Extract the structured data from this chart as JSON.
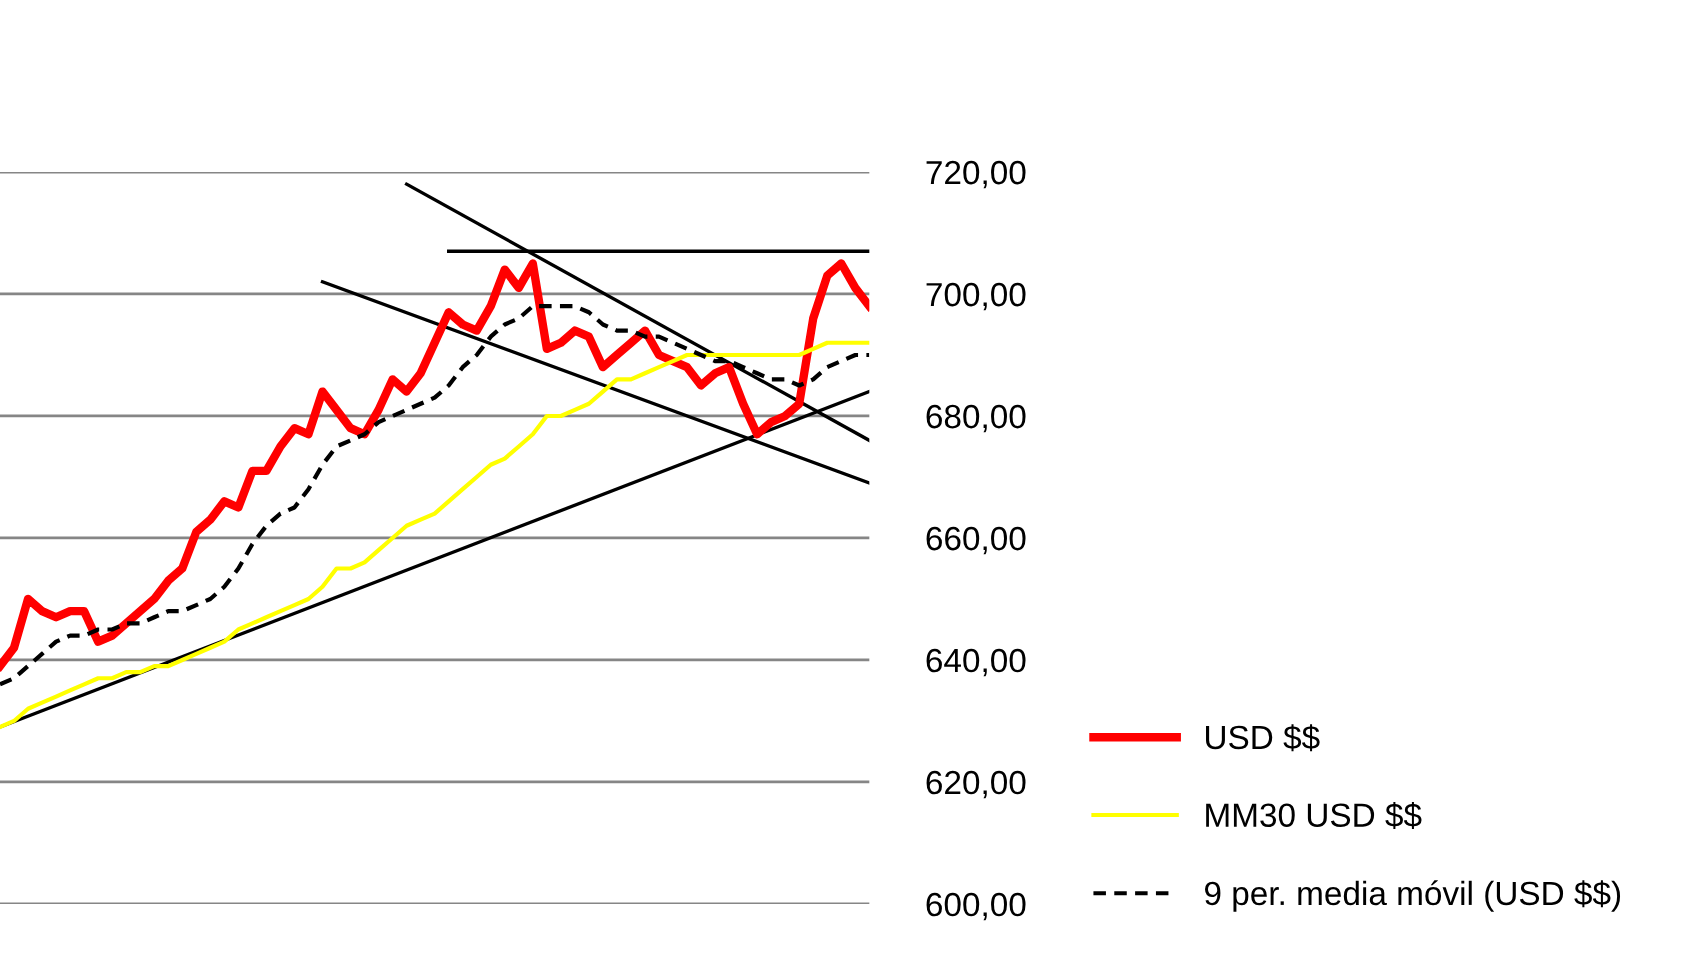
{
  "chart_data": {
    "type": "line",
    "ylim": [
      600,
      720
    ],
    "categories": [
      null,
      null,
      null,
      null,
      null,
      null,
      null,
      null,
      null,
      null,
      null,
      null,
      null,
      null,
      null,
      null,
      null,
      null,
      null,
      null,
      null,
      null,
      null,
      null,
      null,
      null,
      null,
      null,
      null,
      null,
      null,
      null,
      null,
      null,
      null,
      null,
      null,
      null,
      null,
      null,
      null,
      null,
      null,
      null,
      null,
      null,
      null,
      null,
      null,
      null,
      null,
      null,
      null,
      null,
      null,
      null,
      null,
      null,
      null,
      null,
      null,
      null,
      null
    ],
    "yticks": [
      {
        "value": 600,
        "label": "600,00"
      },
      {
        "value": 620,
        "label": "620,00"
      },
      {
        "value": 640,
        "label": "640,00"
      },
      {
        "value": 660,
        "label": "660,00"
      },
      {
        "value": 680,
        "label": "680,00"
      },
      {
        "value": 700,
        "label": "700,00"
      },
      {
        "value": 720,
        "label": "720,00"
      }
    ],
    "tick_labels": "y",
    "grid": "y",
    "legend": "right",
    "series": [
      {
        "name": "USD $$",
        "color": "#ff0000",
        "line_style": "solid",
        "values": [
          639,
          642,
          650,
          648,
          647,
          648,
          648,
          643,
          644,
          646,
          648,
          650,
          653,
          655,
          661,
          663,
          666,
          665,
          671,
          671,
          675,
          678,
          677,
          684,
          681,
          678,
          677,
          681,
          686,
          684,
          687,
          692,
          697,
          695,
          694,
          698,
          704,
          701,
          705,
          691,
          692,
          694,
          693,
          688,
          690,
          692,
          694,
          690,
          689,
          688,
          685,
          687,
          688,
          682,
          677,
          679,
          680,
          682,
          696,
          703,
          705,
          701,
          698
        ]
      },
      {
        "name": "MM30 USD $$",
        "color": "#ffff00",
        "line_style": "solid",
        "values": [
          629,
          630,
          632,
          633,
          634,
          635,
          636,
          637,
          637,
          638,
          638,
          639,
          639,
          640,
          641,
          642,
          643,
          645,
          646,
          647,
          648,
          649,
          650,
          652,
          655,
          655,
          656,
          658,
          660,
          662,
          663,
          664,
          666,
          668,
          670,
          672,
          673,
          675,
          677,
          680,
          680,
          681,
          682,
          684,
          686,
          686,
          687,
          688,
          689,
          690,
          690,
          690,
          690,
          690,
          690,
          690,
          690,
          690,
          691,
          692,
          692,
          692,
          692
        ]
      },
      {
        "name": "9 per. media móvil (USD $$)",
        "color": "#000000",
        "line_style": "dashed",
        "values": [
          636,
          637,
          639,
          641,
          643,
          644,
          644,
          645,
          645,
          646,
          646,
          647,
          648,
          648,
          649,
          650,
          652,
          655,
          659,
          662,
          664,
          665,
          668,
          672,
          675,
          676,
          677,
          679,
          680,
          681,
          682,
          683,
          685,
          688,
          690,
          693,
          695,
          696,
          698,
          698,
          698,
          698,
          697,
          695,
          694,
          694,
          693,
          693,
          692,
          691,
          690,
          689,
          689,
          688,
          687,
          686,
          686,
          685,
          686,
          688,
          689,
          690,
          690
        ]
      },
      {
        "color": "#000000",
        "line_style": "solid",
        "values": [
          629,
          null,
          null,
          null,
          null,
          null,
          null,
          null,
          null,
          null,
          null,
          null,
          null,
          null,
          null,
          null,
          null,
          null,
          null,
          null,
          null,
          null,
          null,
          null,
          null,
          null,
          null,
          null,
          null,
          null,
          null,
          null,
          null,
          null,
          null,
          null,
          null,
          null,
          null,
          null,
          null,
          null,
          null,
          null,
          null,
          null,
          null,
          null,
          null,
          null,
          null,
          null,
          null,
          null,
          null,
          null,
          null,
          null,
          null,
          null,
          null,
          null,
          684
        ]
      },
      {
        "color": "#000000",
        "line_style": "solid",
        "values": [
          null,
          null,
          null,
          null,
          null,
          null,
          null,
          null,
          null,
          null,
          null,
          null,
          null,
          null,
          null,
          null,
          null,
          null,
          null,
          null,
          null,
          null,
          null,
          null,
          null,
          null,
          null,
          null,
          null,
          718,
          null,
          null,
          null,
          null,
          null,
          null,
          null,
          null,
          null,
          null,
          null,
          null,
          null,
          null,
          null,
          null,
          null,
          null,
          null,
          null,
          null,
          null,
          null,
          null,
          null,
          null,
          null,
          null,
          null,
          null,
          null,
          null,
          676
        ]
      },
      {
        "color": "#000000",
        "line_style": "solid",
        "values": [
          null,
          null,
          null,
          null,
          null,
          null,
          null,
          null,
          null,
          null,
          null,
          null,
          null,
          null,
          null,
          null,
          null,
          null,
          null,
          null,
          null,
          null,
          null,
          702,
          null,
          null,
          null,
          null,
          null,
          null,
          null,
          null,
          null,
          null,
          null,
          null,
          null,
          null,
          null,
          null,
          null,
          null,
          null,
          null,
          null,
          null,
          null,
          null,
          null,
          null,
          null,
          null,
          null,
          null,
          null,
          null,
          null,
          null,
          null,
          null,
          null,
          null,
          669
        ]
      },
      {
        "color": "#000000",
        "line_style": "solid",
        "values": [
          null,
          null,
          null,
          null,
          null,
          null,
          null,
          null,
          null,
          null,
          null,
          null,
          null,
          null,
          null,
          null,
          null,
          null,
          null,
          null,
          null,
          null,
          null,
          null,
          null,
          null,
          null,
          null,
          null,
          null,
          null,
          null,
          707,
          null,
          null,
          null,
          null,
          null,
          null,
          null,
          null,
          null,
          null,
          null,
          null,
          null,
          null,
          null,
          null,
          null,
          null,
          null,
          null,
          null,
          null,
          null,
          null,
          null,
          null,
          null,
          null,
          null,
          707
        ]
      }
    ]
  }
}
